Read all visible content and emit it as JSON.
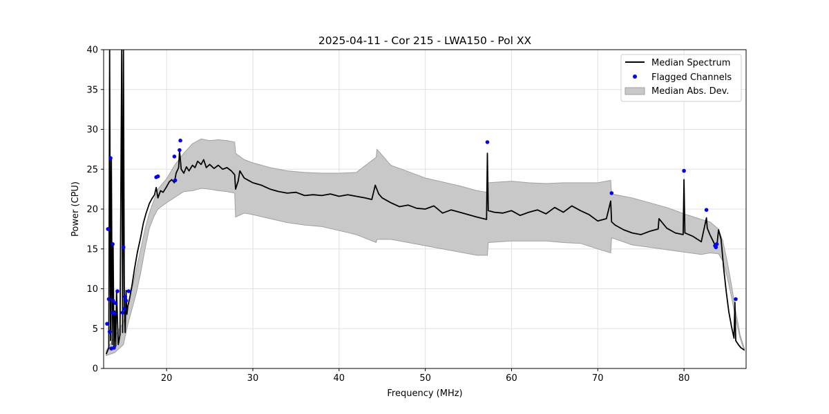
{
  "chart_data": {
    "type": "line",
    "title": "2025-04-11 - Cor 215 - LWA150 - Pol XX",
    "xlabel": "Frequency (MHz)",
    "ylabel": "Power (CPU)",
    "xlim": [
      12.7,
      87.2
    ],
    "ylim": [
      0,
      40
    ],
    "xticks": [
      20,
      30,
      40,
      50,
      60,
      70,
      80
    ],
    "yticks": [
      0,
      5,
      10,
      15,
      20,
      25,
      30,
      35,
      40
    ],
    "grid": true,
    "legend_position": "top-right",
    "colors": {
      "median": "#000000",
      "flagged": "#0000ff",
      "mad_fill": "#c8c8c8",
      "mad_edge": "#a0a0a0"
    },
    "series": [
      {
        "name": "Median Spectrum",
        "kind": "line",
        "x": [
          13.0,
          13.3,
          13.4,
          13.5,
          13.6,
          13.7,
          13.8,
          13.9,
          14.0,
          14.1,
          14.2,
          14.4,
          14.6,
          14.8,
          14.9,
          15.0,
          15.1,
          15.2,
          15.3,
          15.4,
          15.5,
          15.7,
          16.0,
          16.3,
          16.6,
          17.0,
          17.3,
          17.6,
          18.0,
          18.3,
          18.6,
          18.8,
          19.0,
          19.3,
          19.6,
          20.0,
          20.3,
          20.6,
          20.9,
          21.1,
          21.4,
          21.5,
          21.7,
          22.0,
          22.3,
          22.6,
          23.0,
          23.3,
          23.6,
          24.0,
          24.3,
          24.6,
          25.0,
          25.5,
          26.0,
          26.5,
          27.0,
          27.5,
          27.9,
          28.0,
          28.3,
          28.5,
          29.0,
          29.5,
          30.0,
          31.0,
          32.0,
          33.0,
          34.0,
          35.0,
          36.0,
          37.0,
          38.0,
          39.0,
          40.0,
          41.0,
          42.0,
          43.0,
          43.8,
          44.2,
          44.6,
          45.0,
          46.0,
          47.0,
          48.0,
          49.0,
          50.0,
          51.0,
          52.0,
          53.0,
          54.0,
          55.0,
          56.0,
          57.1,
          57.2,
          57.3,
          58.0,
          59.0,
          60.0,
          61.0,
          62.0,
          63.0,
          64.0,
          65.0,
          66.0,
          67.0,
          68.0,
          69.0,
          70.0,
          71.0,
          71.5,
          71.6,
          72.0,
          73.0,
          74.0,
          75.0,
          76.0,
          77.0,
          77.1,
          78.0,
          79.0,
          79.9,
          80.0,
          80.1,
          81.0,
          82.0,
          82.6,
          82.7,
          83.0,
          83.5,
          83.8,
          84.0,
          84.3,
          84.6,
          84.9,
          85.2,
          85.5,
          85.8,
          85.9,
          86.0,
          86.3,
          86.6,
          87.0
        ],
        "values": [
          1.8,
          2.6,
          40,
          3.5,
          26.4,
          3.0,
          15.6,
          2.6,
          7.2,
          2.8,
          9.8,
          3.0,
          4.2,
          40,
          4.5,
          40,
          7.6,
          4.5,
          9.8,
          6.8,
          7.8,
          8.7,
          10.5,
          12.6,
          14.5,
          16.5,
          18.2,
          19.4,
          20.7,
          21.3,
          21.8,
          22.7,
          21.4,
          22.3,
          22.1,
          22.8,
          23.4,
          23.7,
          23.3,
          24.5,
          25.2,
          27.4,
          25.0,
          24.5,
          25.3,
          24.8,
          25.5,
          25.2,
          26.0,
          25.6,
          26.2,
          25.2,
          25.6,
          25.1,
          25.5,
          25.0,
          25.2,
          24.8,
          24.3,
          22.5,
          23.5,
          24.8,
          23.9,
          23.6,
          23.3,
          23.0,
          22.5,
          22.2,
          22.0,
          22.1,
          21.7,
          21.8,
          21.7,
          21.9,
          21.6,
          21.8,
          21.6,
          21.4,
          21.2,
          23.0,
          21.9,
          21.4,
          20.8,
          20.3,
          20.5,
          20.1,
          20.0,
          20.4,
          19.5,
          19.9,
          19.6,
          19.3,
          19.0,
          18.7,
          27.0,
          19.8,
          19.6,
          19.5,
          19.8,
          19.2,
          19.6,
          19.9,
          19.4,
          20.2,
          19.6,
          20.4,
          19.8,
          19.3,
          18.5,
          18.8,
          21.0,
          18.4,
          18.0,
          17.4,
          17.0,
          16.8,
          17.2,
          17.5,
          18.8,
          17.6,
          17.0,
          16.8,
          23.7,
          17.0,
          16.6,
          15.9,
          18.9,
          17.6,
          16.8,
          15.7,
          15.3,
          17.4,
          16.2,
          12.6,
          9.6,
          7.1,
          5.3,
          3.8,
          8.3,
          3.5,
          3.0,
          2.6,
          2.3
        ]
      },
      {
        "name": "Flagged Channels",
        "kind": "scatter",
        "x": [
          13.1,
          13.2,
          13.3,
          13.4,
          13.5,
          13.6,
          13.7,
          13.75,
          13.8,
          13.9,
          14.0,
          14.1,
          14.3,
          14.9,
          15.0,
          15.1,
          15.2,
          15.3,
          15.6,
          18.8,
          19.0,
          20.9,
          21.0,
          21.5,
          21.6,
          57.2,
          71.6,
          80.0,
          82.6,
          83.6,
          83.7,
          83.8,
          86.0
        ],
        "values": [
          5.6,
          17.5,
          8.7,
          4.6,
          26.4,
          2.5,
          7.0,
          15.6,
          8.5,
          2.6,
          6.9,
          8.2,
          9.7,
          7.0,
          15.2,
          7.5,
          9.0,
          8.5,
          9.7,
          24.0,
          24.1,
          26.6,
          23.6,
          27.4,
          28.6,
          28.4,
          22.0,
          24.8,
          19.9,
          15.4,
          15.2,
          15.6,
          8.7
        ]
      },
      {
        "name": "Median Abs. Dev.",
        "kind": "band",
        "x": [
          13.0,
          14.0,
          15.0,
          15.5,
          16.0,
          16.5,
          17.0,
          17.5,
          18.0,
          18.5,
          19.0,
          20.0,
          21.0,
          22.0,
          23.0,
          24.0,
          25.0,
          26.0,
          27.0,
          27.9,
          28.0,
          29.0,
          30.0,
          32.0,
          34.0,
          36.0,
          38.0,
          40.0,
          42.0,
          44.3,
          44.4,
          46.0,
          48.0,
          50.0,
          52.0,
          54.0,
          56.0,
          57.2,
          57.3,
          60.0,
          62.0,
          64.0,
          66.0,
          68.0,
          70.0,
          71.5,
          71.6,
          74.0,
          76.0,
          78.0,
          80.0,
          82.0,
          83.0,
          84.0,
          84.5,
          85.0,
          85.5,
          86.0,
          86.5,
          87.0
        ],
        "lower": [
          1.6,
          2.0,
          3.0,
          5.5,
          7.5,
          9.5,
          12.0,
          15.0,
          17.6,
          19.0,
          20.0,
          20.8,
          21.5,
          22.2,
          22.3,
          22.6,
          22.5,
          22.3,
          22.2,
          22.0,
          19.0,
          19.5,
          19.3,
          18.8,
          18.3,
          18.0,
          17.8,
          17.3,
          16.8,
          15.8,
          16.2,
          16.2,
          15.8,
          15.4,
          15.0,
          14.6,
          14.2,
          14.2,
          15.8,
          16.0,
          16.0,
          16.0,
          15.8,
          15.7,
          15.0,
          14.5,
          16.4,
          15.5,
          15.2,
          14.9,
          14.6,
          14.3,
          14.5,
          14.4,
          13.5,
          11.5,
          9.0,
          6.2,
          3.8,
          2.2
        ],
        "upper": [
          2.2,
          4.0,
          5.8,
          8.0,
          10.0,
          12.5,
          15.0,
          17.5,
          19.5,
          21.0,
          22.5,
          23.8,
          25.6,
          27.0,
          28.2,
          28.8,
          28.6,
          28.7,
          28.6,
          28.4,
          27.0,
          26.2,
          25.8,
          25.2,
          24.8,
          24.6,
          24.5,
          24.5,
          24.6,
          26.5,
          27.5,
          25.5,
          24.7,
          23.9,
          23.4,
          22.9,
          22.3,
          22.1,
          23.3,
          23.5,
          23.3,
          23.2,
          23.3,
          23.3,
          23.3,
          23.6,
          21.9,
          21.4,
          20.8,
          20.2,
          19.4,
          18.7,
          18.4,
          17.5,
          16.0,
          13.5,
          10.5,
          7.2,
          4.2,
          2.5
        ]
      }
    ]
  }
}
